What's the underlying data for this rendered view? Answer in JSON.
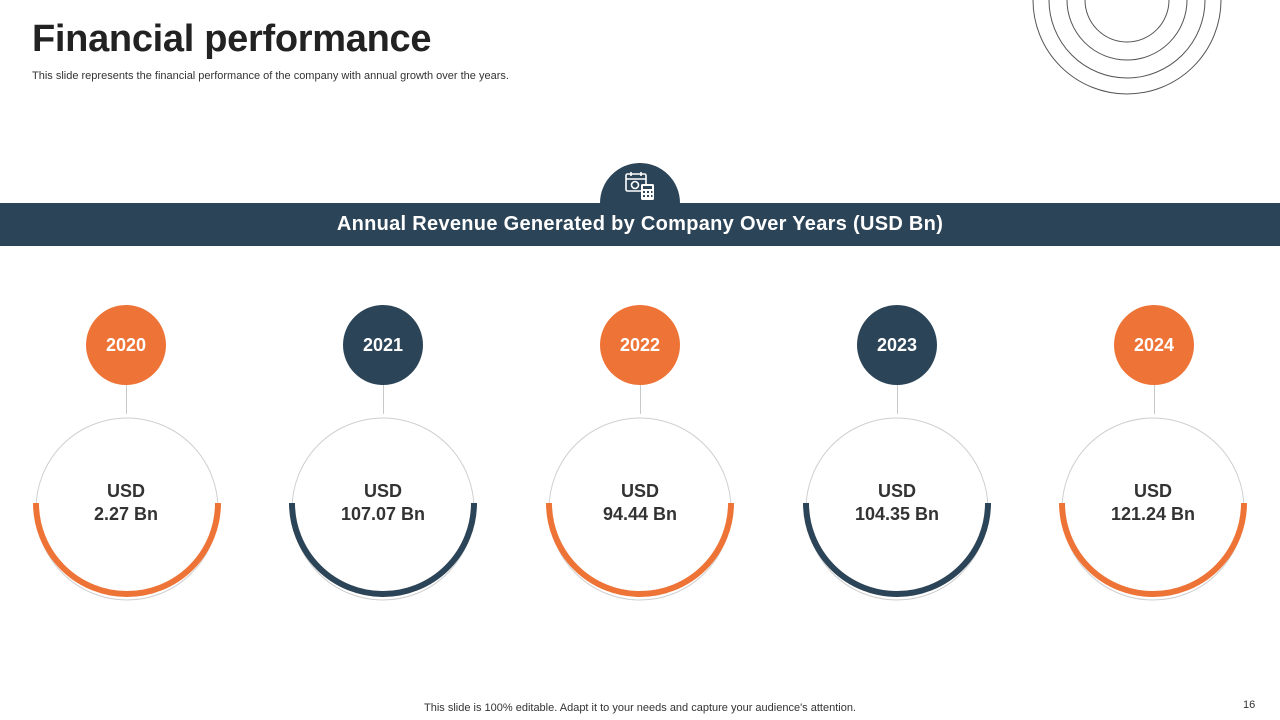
{
  "page": {
    "title": "Financial performance",
    "subtitle": "This slide represents the financial performance of the company with annual growth over the years."
  },
  "banner": {
    "title": "Annual Revenue Generated by Company Over Years (USD Bn)",
    "icon": "calendar-calculator-icon"
  },
  "colors": {
    "orange": "#ee7336",
    "navy": "#2c4457",
    "ring_gray": "#cfcfcf"
  },
  "revenue": {
    "items": [
      {
        "year": "2020",
        "currency": "USD",
        "amount": "2.27 Bn"
      },
      {
        "year": "2021",
        "currency": "USD",
        "amount": "107.07 Bn"
      },
      {
        "year": "2022",
        "currency": "USD",
        "amount": "94.44 Bn"
      },
      {
        "year": "2023",
        "currency": "USD",
        "amount": "104.35 Bn"
      },
      {
        "year": "2024",
        "currency": "USD",
        "amount": "121.24 Bn"
      }
    ]
  },
  "footer": {
    "note": "This slide is 100% editable. Adapt it to your needs and capture your audience's attention.",
    "page_number": "16"
  }
}
